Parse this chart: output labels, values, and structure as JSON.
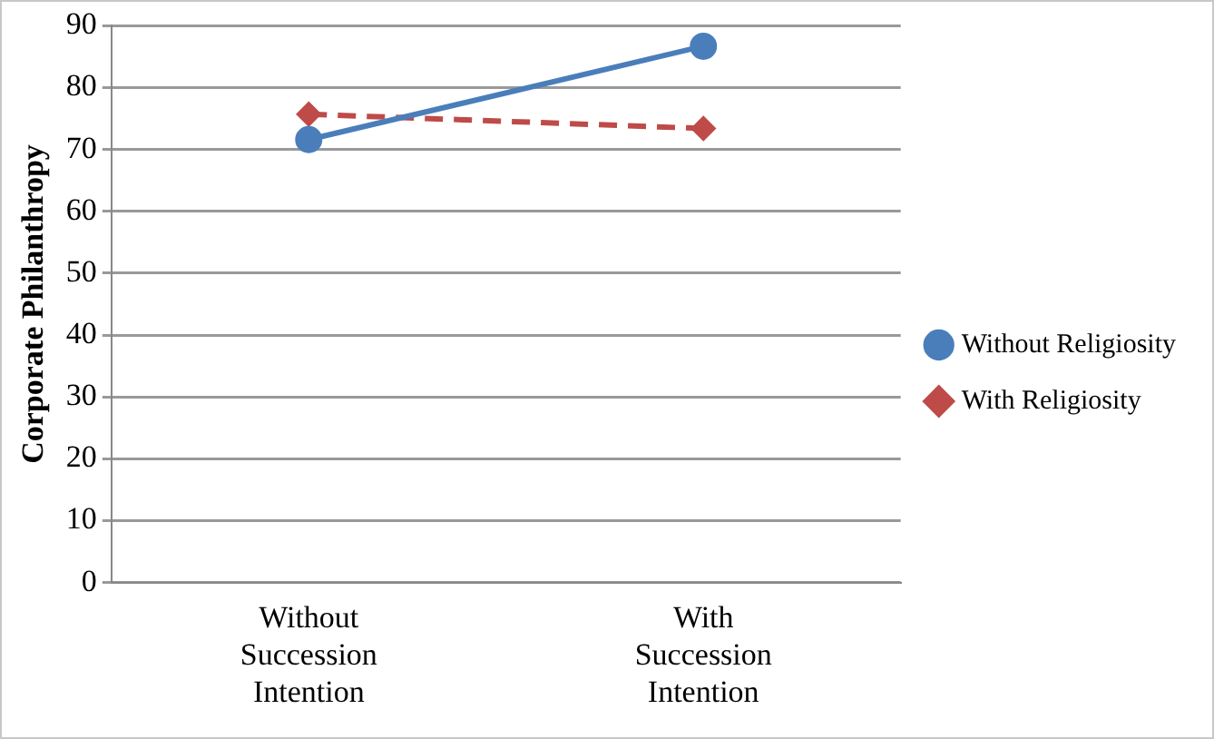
{
  "chart_data": {
    "type": "line",
    "ylabel": "Corporate Philanthropy",
    "categories": [
      "Without Succession Intention",
      "With Succession Intention"
    ],
    "series": [
      {
        "name": "Without Religiosity",
        "color": "#4a7ebb",
        "values": [
          71.6,
          86.7
        ],
        "marker": "circle",
        "line_style": "solid"
      },
      {
        "name": "With Religiosity",
        "color": "#be4b48",
        "values": [
          75.7,
          73.4
        ],
        "marker": "diamond",
        "line_style": "dashed"
      }
    ],
    "ylim": [
      0,
      90
    ],
    "yticks": [
      0,
      10,
      20,
      30,
      40,
      50,
      60,
      70,
      80,
      90
    ],
    "grid": "y",
    "legend": "right"
  }
}
